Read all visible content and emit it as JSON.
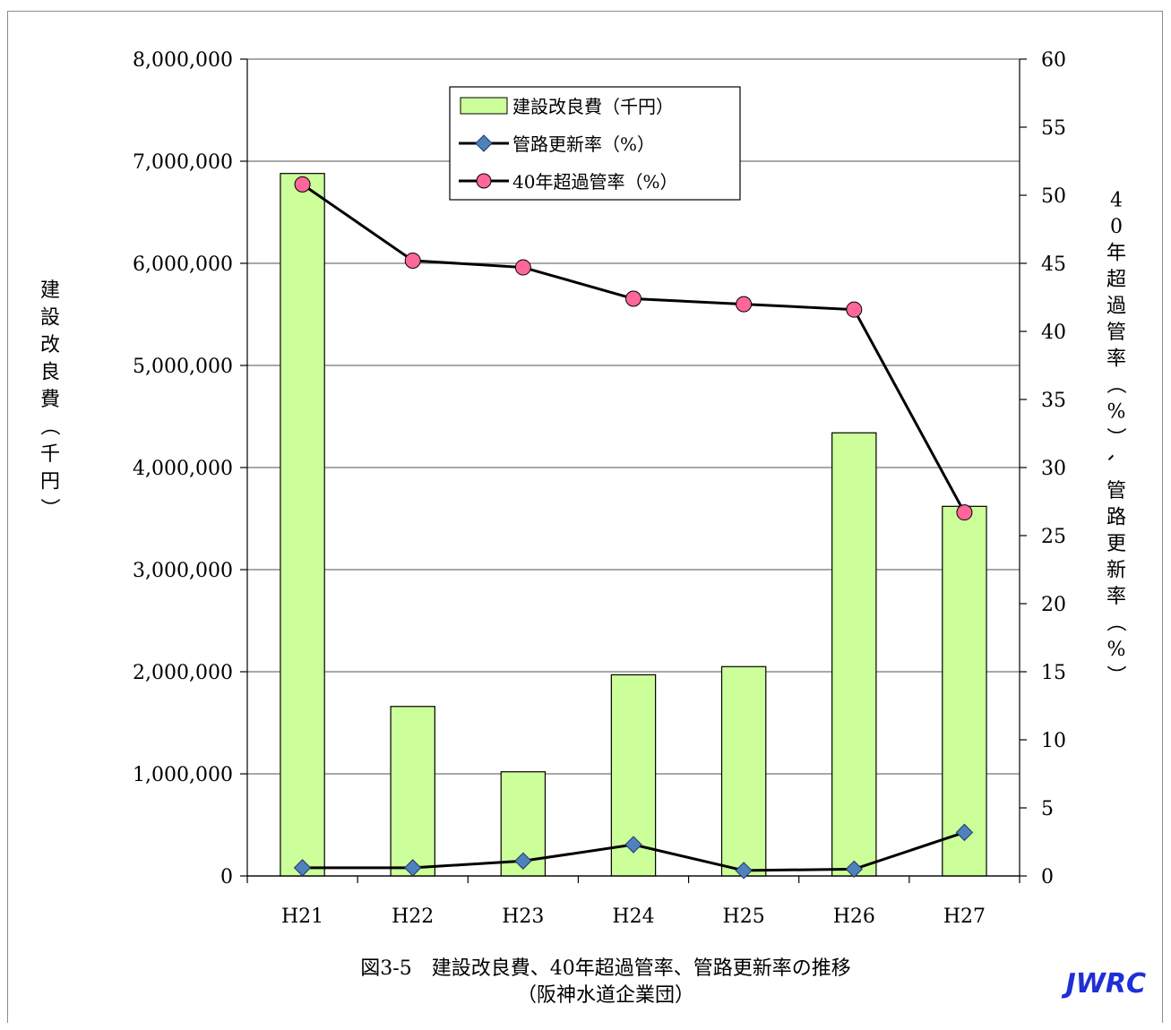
{
  "chart_data": {
    "type": "bar",
    "categories": [
      "H21",
      "H22",
      "H23",
      "H24",
      "H25",
      "H26",
      "H27"
    ],
    "series": [
      {
        "name": "建設改良費（千円）",
        "type": "bar",
        "axis": "left",
        "color": "#ccff99",
        "values": [
          6880000,
          1660000,
          1020000,
          1970000,
          2050000,
          4340000,
          3620000
        ]
      },
      {
        "name": "管路更新率（%）",
        "type": "line",
        "axis": "right",
        "marker": "diamond",
        "marker_color": "#4f81bd",
        "values": [
          0.6,
          0.6,
          1.1,
          2.3,
          0.4,
          0.5,
          3.2
        ]
      },
      {
        "name": "40年超過管率（%）",
        "type": "line",
        "axis": "right",
        "marker": "circle",
        "marker_color": "#ff6699",
        "values": [
          50.8,
          45.2,
          44.7,
          42.4,
          42.0,
          41.6,
          26.7
        ]
      }
    ],
    "ylim_left": [
      0,
      8000000
    ],
    "ylim_right": [
      0,
      60
    ],
    "yticks_left": [
      "0",
      "1,000,000",
      "2,000,000",
      "3,000,000",
      "4,000,000",
      "5,000,000",
      "6,000,000",
      "7,000,000",
      "8,000,000"
    ],
    "yticks_right": [
      "0",
      "5",
      "10",
      "15",
      "20",
      "25",
      "30",
      "35",
      "40",
      "45",
      "50",
      "55",
      "60"
    ],
    "ylabel_left": "建設改良費（千円）",
    "ylabel_right": "40年超過管率（%）、管路更新率（%）",
    "grid": true,
    "legend_position": "top-center"
  },
  "caption": {
    "line1": "図3-5　建設改良費、40年超過管率、管路更新率の推移",
    "line2": "（阪神水道企業団）"
  },
  "logo": "JWRC"
}
